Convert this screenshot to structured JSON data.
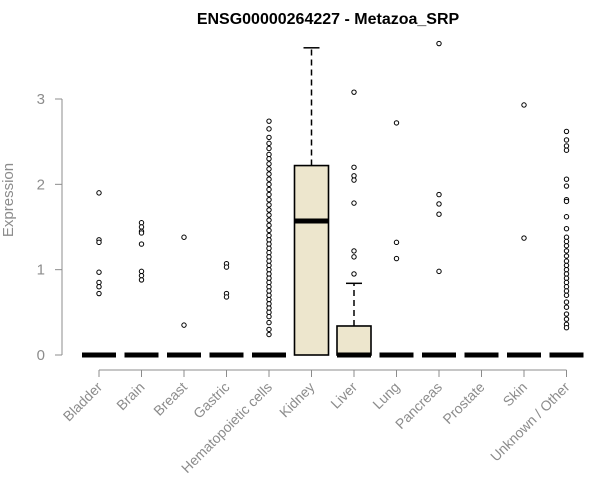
{
  "chart_data": {
    "type": "boxplot",
    "title": "ENSG00000264227 - Metazoa_SRP",
    "xlabel": "",
    "ylabel": "Expression",
    "ylim": [
      0,
      3.75
    ],
    "yticks": [
      0,
      1,
      2,
      3
    ],
    "box_fill": "#ede6cd",
    "categories": [
      "Bladder",
      "Brain",
      "Breast",
      "Gastric",
      "Hematopoietic cells",
      "Kidney",
      "Liver",
      "Lung",
      "Pancreas",
      "Prostate",
      "Skin",
      "Unknown / Other"
    ],
    "boxes": [
      {
        "category": "Bladder",
        "q1": 0,
        "median": 0,
        "q3": 0,
        "whisker_low": 0,
        "whisker_high": 0,
        "outliers": [
          1.9,
          1.35,
          1.32,
          0.97,
          0.85,
          0.8,
          0.72
        ]
      },
      {
        "category": "Brain",
        "q1": 0,
        "median": 0,
        "q3": 0,
        "whisker_low": 0,
        "whisker_high": 0,
        "outliers": [
          1.55,
          1.5,
          1.45,
          1.43,
          1.3,
          0.98,
          0.93,
          0.88
        ]
      },
      {
        "category": "Breast",
        "q1": 0,
        "median": 0,
        "q3": 0,
        "whisker_low": 0,
        "whisker_high": 0,
        "outliers": [
          1.38,
          0.35
        ]
      },
      {
        "category": "Gastric",
        "q1": 0,
        "median": 0,
        "q3": 0,
        "whisker_low": 0,
        "whisker_high": 0,
        "outliers": [
          1.07,
          1.03,
          0.72,
          0.68
        ]
      },
      {
        "category": "Hematopoietic cells",
        "q1": 0,
        "median": 0,
        "q3": 0,
        "whisker_low": 0,
        "whisker_high": 0,
        "outliers": [
          2.74,
          2.65,
          2.55,
          2.48,
          2.42,
          2.35,
          2.3,
          2.24,
          2.18,
          2.12,
          2.06,
          2.0,
          1.94,
          1.88,
          1.82,
          1.76,
          1.7,
          1.64,
          1.58,
          1.52,
          1.46,
          1.4,
          1.35,
          1.3,
          1.25,
          1.2,
          1.15,
          1.1,
          1.05,
          1.0,
          0.95,
          0.9,
          0.85,
          0.8,
          0.75,
          0.7,
          0.65,
          0.6,
          0.55,
          0.5,
          0.45,
          0.38,
          0.3,
          0.24
        ]
      },
      {
        "category": "Kidney",
        "q1": 0,
        "median": 1.57,
        "q3": 2.22,
        "whisker_low": 0,
        "whisker_high": 3.6,
        "outliers": []
      },
      {
        "category": "Liver",
        "q1": 0,
        "median": 0,
        "q3": 0.34,
        "whisker_low": 0,
        "whisker_high": 0.84,
        "outliers": [
          3.08,
          2.2,
          2.1,
          2.05,
          1.78,
          1.22,
          1.15,
          0.95
        ]
      },
      {
        "category": "Lung",
        "q1": 0,
        "median": 0,
        "q3": 0,
        "whisker_low": 0,
        "whisker_high": 0,
        "outliers": [
          2.72,
          1.32,
          1.13
        ]
      },
      {
        "category": "Pancreas",
        "q1": 0,
        "median": 0,
        "q3": 0,
        "whisker_low": 0,
        "whisker_high": 0,
        "outliers": [
          3.65,
          1.88,
          1.77,
          1.65,
          0.98
        ]
      },
      {
        "category": "Prostate",
        "q1": 0,
        "median": 0,
        "q3": 0,
        "whisker_low": 0,
        "whisker_high": 0,
        "outliers": []
      },
      {
        "category": "Skin",
        "q1": 0,
        "median": 0,
        "q3": 0,
        "whisker_low": 0,
        "whisker_high": 0,
        "outliers": [
          2.93,
          1.37
        ]
      },
      {
        "category": "Unknown / Other",
        "q1": 0,
        "median": 0,
        "q3": 0,
        "whisker_low": 0,
        "whisker_high": 0,
        "outliers": [
          2.62,
          2.52,
          2.45,
          2.4,
          2.06,
          1.98,
          1.82,
          1.8,
          1.62,
          1.48,
          1.38,
          1.33,
          1.28,
          1.22,
          1.16,
          1.1,
          1.05,
          1.0,
          0.95,
          0.9,
          0.85,
          0.8,
          0.75,
          0.7,
          0.62,
          0.56,
          0.48,
          0.42,
          0.36,
          0.32
        ]
      }
    ]
  }
}
